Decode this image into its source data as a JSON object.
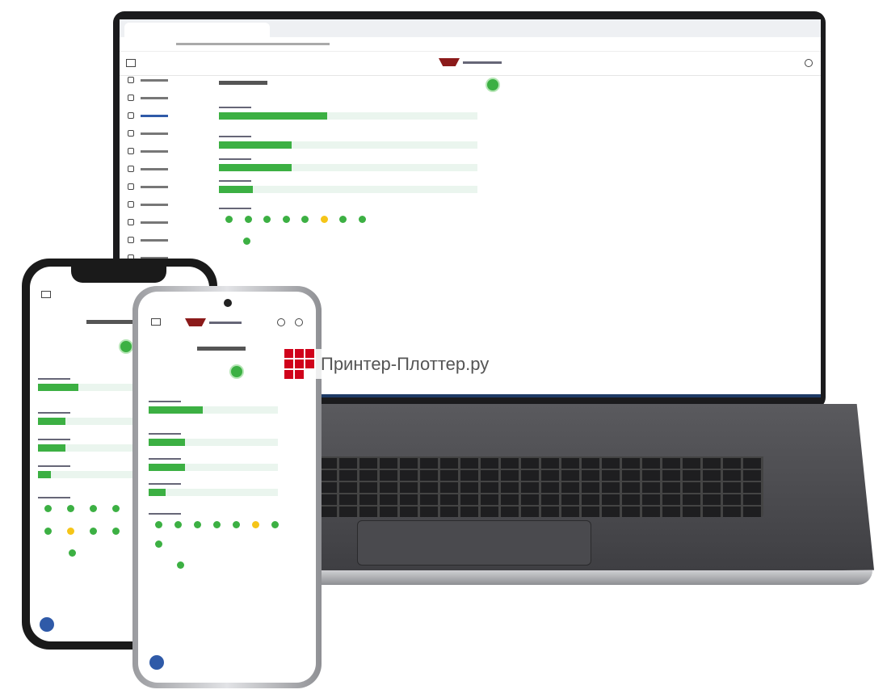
{
  "watermark": {
    "text": "Принтер-Плоттер.ру",
    "color": "#d0021b"
  },
  "colors": {
    "ok": "#3cb043",
    "warn": "#f5c518",
    "track": "#eaf5ee",
    "fab": "#2f5aa8"
  },
  "dashboard": {
    "bars": [
      {
        "percent": 42
      },
      {
        "percent": 28
      },
      {
        "percent": 28
      },
      {
        "percent": 13
      }
    ],
    "status_dots": [
      "ok",
      "ok",
      "ok",
      "ok",
      "ok",
      "warn",
      "ok",
      "ok"
    ],
    "extra_dot": "ok"
  },
  "sidebar": {
    "item_count": 11
  }
}
